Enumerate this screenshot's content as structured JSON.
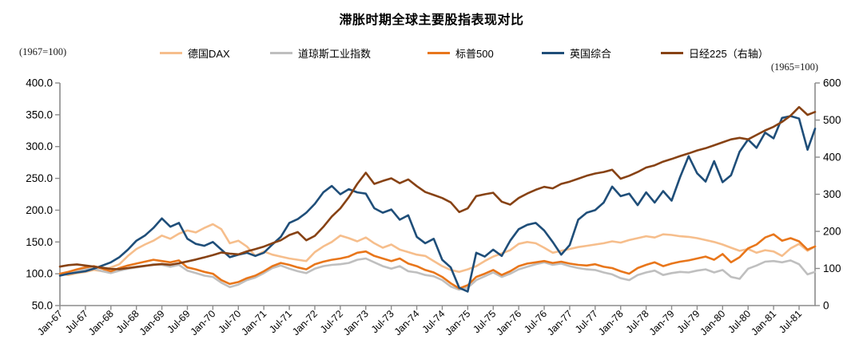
{
  "title": "滞胀时期全球主要股指表现对比",
  "left_axis_note": "(1967=100)",
  "right_axis_note": "(1965=100)",
  "legend": [
    {
      "label": "德国DAX",
      "color": "#F6BE8C"
    },
    {
      "label": "道琼斯工业指数",
      "color": "#BFBFBF"
    },
    {
      "label": "标普500",
      "color": "#E8761B"
    },
    {
      "label": "英国综合",
      "color": "#1F4E79"
    },
    {
      "label": "日经225（右轴）",
      "color": "#874214"
    }
  ],
  "chart_data": {
    "type": "line",
    "title": "滞胀时期全球主要股指表现对比",
    "x_tick_labels": [
      "Jan-67",
      "Jul-67",
      "Jan-68",
      "Jul-68",
      "Jan-69",
      "Jul-69",
      "Jan-70",
      "Jul-70",
      "Jan-71",
      "Jul-71",
      "Jan-72",
      "Jul-72",
      "Jan-73",
      "Jul-73",
      "Jan-74",
      "Jul-74",
      "Jan-75",
      "Jul-75",
      "Jan-76",
      "Jul-76",
      "Jan-77",
      "Jul-77",
      "Jan-78",
      "Jul-78",
      "Jan-79",
      "Jul-79",
      "Jan-80",
      "Jul-80",
      "Jan-81",
      "Jul-81"
    ],
    "x_months_per_tick": 6,
    "left_axis": {
      "note": "(1967=100)",
      "min": 50,
      "max": 400,
      "tick_labels": [
        "400.0",
        "350.0",
        "300.0",
        "250.0",
        "200.0",
        "150.0",
        "100.0",
        "50.0"
      ],
      "tick_values": [
        400,
        350,
        300,
        250,
        200,
        150,
        100,
        50
      ]
    },
    "right_axis": {
      "note": "(1965=100)",
      "min": 0,
      "max": 600,
      "tick_labels": [
        "600",
        "500",
        "400",
        "300",
        "200",
        "100",
        "0"
      ],
      "tick_values": [
        600,
        500,
        400,
        300,
        200,
        100,
        0
      ]
    },
    "grid": false,
    "legend_position": "top",
    "series": [
      {
        "name": "德国DAX",
        "axis": "left",
        "color": "#F6BE8C",
        "start_month": 0,
        "step_months": 2,
        "values": [
          100,
          98,
          101,
          103,
          106,
          104,
          110,
          115,
          128,
          139,
          146,
          152,
          160,
          155,
          163,
          168,
          165,
          172,
          178,
          170,
          148,
          152,
          143,
          128,
          135,
          130,
          127,
          124,
          122,
          120,
          134,
          143,
          150,
          160,
          156,
          151,
          157,
          148,
          141,
          146,
          138,
          134,
          130,
          128,
          120,
          112,
          106,
          103,
          107,
          112,
          120,
          127,
          132,
          137,
          147,
          150,
          148,
          141,
          133,
          136,
          139,
          142,
          144,
          146,
          148,
          151,
          149,
          153,
          156,
          159,
          157,
          162,
          161,
          159,
          158,
          156,
          153,
          150,
          146,
          141,
          136,
          139,
          133,
          137,
          135,
          128,
          140,
          147,
          136,
          143
        ]
      },
      {
        "name": "道琼斯工业指数",
        "axis": "left",
        "color": "#BFBFBF",
        "start_month": 0,
        "step_months": 2,
        "values": [
          100,
          102,
          105,
          107,
          108,
          104,
          101,
          105,
          108,
          110,
          112,
          115,
          114,
          111,
          114,
          105,
          101,
          97,
          95,
          86,
          79,
          83,
          90,
          94,
          101,
          109,
          113,
          108,
          104,
          101,
          108,
          112,
          114,
          115,
          117,
          122,
          124,
          118,
          112,
          108,
          112,
          104,
          102,
          98,
          96,
          90,
          80,
          75,
          78,
          90,
          96,
          102,
          95,
          100,
          107,
          111,
          115,
          118,
          114,
          116,
          112,
          109,
          107,
          106,
          102,
          99,
          93,
          90,
          98,
          102,
          105,
          98,
          101,
          103,
          102,
          105,
          107,
          102,
          106,
          95,
          92,
          108,
          113,
          119,
          120,
          118,
          121,
          115,
          99,
          103
        ]
      },
      {
        "name": "标普500",
        "axis": "left",
        "color": "#E8761B",
        "start_month": 0,
        "step_months": 2,
        "values": [
          100,
          103,
          107,
          110,
          112,
          108,
          104,
          109,
          113,
          116,
          119,
          122,
          120,
          118,
          121,
          110,
          107,
          103,
          100,
          90,
          84,
          87,
          93,
          97,
          104,
          112,
          117,
          114,
          110,
          107,
          115,
          119,
          122,
          124,
          127,
          133,
          135,
          128,
          124,
          120,
          124,
          116,
          112,
          106,
          102,
          95,
          85,
          77,
          82,
          95,
          100,
          106,
          98,
          104,
          112,
          116,
          118,
          120,
          117,
          119,
          116,
          114,
          113,
          115,
          111,
          109,
          104,
          100,
          109,
          114,
          118,
          112,
          116,
          119,
          121,
          124,
          127,
          122,
          131,
          118,
          126,
          140,
          146,
          157,
          162,
          152,
          156,
          151,
          138,
          143
        ]
      },
      {
        "name": "英国综合",
        "axis": "left",
        "color": "#1F4E79",
        "start_month": 0,
        "step_months": 2,
        "values": [
          97,
          100,
          102,
          104,
          108,
          113,
          118,
          126,
          138,
          152,
          160,
          172,
          187,
          174,
          180,
          155,
          147,
          144,
          150,
          138,
          126,
          130,
          133,
          128,
          133,
          146,
          158,
          180,
          186,
          196,
          210,
          228,
          238,
          225,
          233,
          228,
          226,
          203,
          196,
          201,
          185,
          192,
          158,
          148,
          155,
          122,
          110,
          78,
          72,
          133,
          127,
          138,
          128,
          152,
          170,
          177,
          180,
          168,
          150,
          130,
          145,
          185,
          196,
          200,
          212,
          237,
          222,
          226,
          208,
          228,
          212,
          230,
          215,
          252,
          285,
          258,
          245,
          277,
          244,
          255,
          292,
          311,
          298,
          322,
          313,
          345,
          348,
          344,
          295,
          328
        ]
      },
      {
        "name": "日经225（右轴）",
        "axis": "right",
        "color": "#874214",
        "start_month": 0,
        "step_months": 2,
        "values": [
          105,
          109,
          111,
          108,
          105,
          102,
          99,
          98,
          101,
          104,
          107,
          110,
          112,
          110,
          114,
          119,
          124,
          130,
          136,
          143,
          140,
          138,
          146,
          152,
          159,
          168,
          176,
          190,
          198,
          176,
          188,
          212,
          240,
          262,
          292,
          328,
          358,
          328,
          336,
          343,
          330,
          340,
          322,
          306,
          298,
          290,
          278,
          252,
          262,
          295,
          300,
          304,
          280,
          272,
          290,
          302,
          312,
          320,
          316,
          328,
          334,
          342,
          350,
          356,
          360,
          366,
          342,
          350,
          360,
          372,
          378,
          388,
          395,
          403,
          410,
          418,
          424,
          432,
          440,
          448,
          452,
          448,
          460,
          472,
          482,
          495,
          512,
          535,
          514,
          522
        ]
      }
    ]
  }
}
